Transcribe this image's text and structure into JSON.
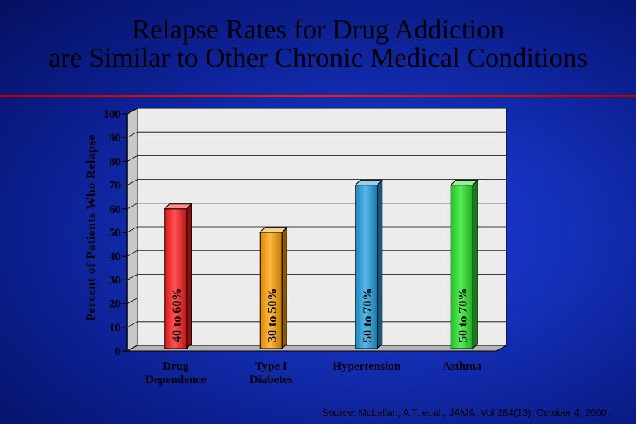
{
  "title": {
    "line1": "Relapse Rates for Drug Addiction",
    "line2": "are Similar to Other Chronic Medical Conditions"
  },
  "source": "Source: McLellan, A.T. et al., JAMA, Vol 284(13), October 4, 2000.",
  "colors": {
    "background": "#1430b8",
    "rule": "#d01010",
    "plot_area": "#e8e8e8"
  },
  "chart_data": {
    "type": "bar",
    "title": "Relapse Rates for Drug Addiction are Similar to Other Chronic Medical Conditions",
    "xlabel": "",
    "ylabel": "Percent of Patients Who Relapse",
    "ylim": [
      0,
      100
    ],
    "yticks": [
      "0",
      "10",
      "20",
      "30",
      "40",
      "50",
      "60",
      "70",
      "80",
      "90",
      "100"
    ],
    "grid": true,
    "categories": [
      {
        "lines": [
          "Drug",
          "Dependence"
        ]
      },
      {
        "lines": [
          "Type I",
          "Diabetes"
        ]
      },
      {
        "lines": [
          "Hypertension"
        ]
      },
      {
        "lines": [
          "Asthma"
        ]
      }
    ],
    "bars": [
      {
        "low": 40,
        "high": 60,
        "label": "40 to 60%",
        "color": "#ff1a1a"
      },
      {
        "low": 30,
        "high": 50,
        "label": "30 to 50%",
        "color": "#ffa000"
      },
      {
        "low": 50,
        "high": 70,
        "label": "50 to 70%",
        "color": "#1ea0e0"
      },
      {
        "low": 50,
        "high": 70,
        "label": "50 to 70%",
        "color": "#22e622"
      }
    ]
  }
}
